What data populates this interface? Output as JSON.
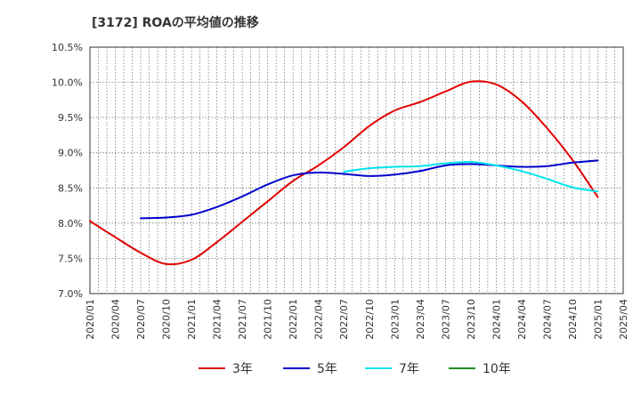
{
  "chart_data": {
    "type": "line",
    "title": "[3172]  ROAの平均値の推移",
    "xlabel": "",
    "ylabel": "",
    "ylim": [
      7.0,
      10.5
    ],
    "y_ticks": [
      "7.0%",
      "7.5%",
      "8.0%",
      "8.5%",
      "9.0%",
      "9.5%",
      "10.0%",
      "10.5%"
    ],
    "x_ticks": [
      "2020/01",
      "2020/04",
      "2020/07",
      "2020/10",
      "2021/01",
      "2021/04",
      "2021/07",
      "2021/10",
      "2022/01",
      "2022/04",
      "2022/07",
      "2022/10",
      "2023/01",
      "2023/04",
      "2023/07",
      "2023/10",
      "2024/01",
      "2024/04",
      "2024/07",
      "2024/10",
      "2025/01",
      "2025/04"
    ],
    "grid": true,
    "legend_position": "bottom",
    "series": [
      {
        "name": "3年",
        "color": "#e00000",
        "points": [
          [
            "2020/01",
            8.03
          ],
          [
            "2020/04",
            7.8
          ],
          [
            "2020/07",
            7.58
          ],
          [
            "2020/10",
            7.42
          ],
          [
            "2021/01",
            7.48
          ],
          [
            "2021/04",
            7.73
          ],
          [
            "2021/07",
            8.02
          ],
          [
            "2021/10",
            8.31
          ],
          [
            "2022/01",
            8.6
          ],
          [
            "2022/04",
            8.82
          ],
          [
            "2022/07",
            9.08
          ],
          [
            "2022/10",
            9.38
          ],
          [
            "2023/01",
            9.6
          ],
          [
            "2023/04",
            9.72
          ],
          [
            "2023/07",
            9.87
          ],
          [
            "2023/10",
            10.01
          ],
          [
            "2024/01",
            9.97
          ],
          [
            "2024/04",
            9.73
          ],
          [
            "2024/07",
            9.35
          ],
          [
            "2024/10",
            8.9
          ],
          [
            "2025/01",
            8.37
          ]
        ]
      },
      {
        "name": "5年",
        "color": "#0000cc",
        "points": [
          [
            "2020/07",
            8.07
          ],
          [
            "2020/10",
            8.08
          ],
          [
            "2021/01",
            8.12
          ],
          [
            "2021/04",
            8.23
          ],
          [
            "2021/07",
            8.38
          ],
          [
            "2021/10",
            8.55
          ],
          [
            "2022/01",
            8.68
          ],
          [
            "2022/04",
            8.72
          ],
          [
            "2022/07",
            8.7
          ],
          [
            "2022/10",
            8.67
          ],
          [
            "2023/01",
            8.69
          ],
          [
            "2023/04",
            8.74
          ],
          [
            "2023/07",
            8.82
          ],
          [
            "2023/10",
            8.84
          ],
          [
            "2024/01",
            8.82
          ],
          [
            "2024/04",
            8.8
          ],
          [
            "2024/07",
            8.81
          ],
          [
            "2024/10",
            8.86
          ],
          [
            "2025/01",
            8.89
          ]
        ]
      },
      {
        "name": "7年",
        "color": "#00e5ee",
        "points": [
          [
            "2022/07",
            8.73
          ],
          [
            "2022/10",
            8.78
          ],
          [
            "2023/01",
            8.8
          ],
          [
            "2023/04",
            8.81
          ],
          [
            "2023/07",
            8.85
          ],
          [
            "2023/10",
            8.87
          ],
          [
            "2024/01",
            8.82
          ],
          [
            "2024/04",
            8.74
          ],
          [
            "2024/07",
            8.63
          ],
          [
            "2024/10",
            8.51
          ],
          [
            "2025/01",
            8.45
          ]
        ]
      },
      {
        "name": "10年",
        "color": "#228b22",
        "points": []
      }
    ]
  }
}
